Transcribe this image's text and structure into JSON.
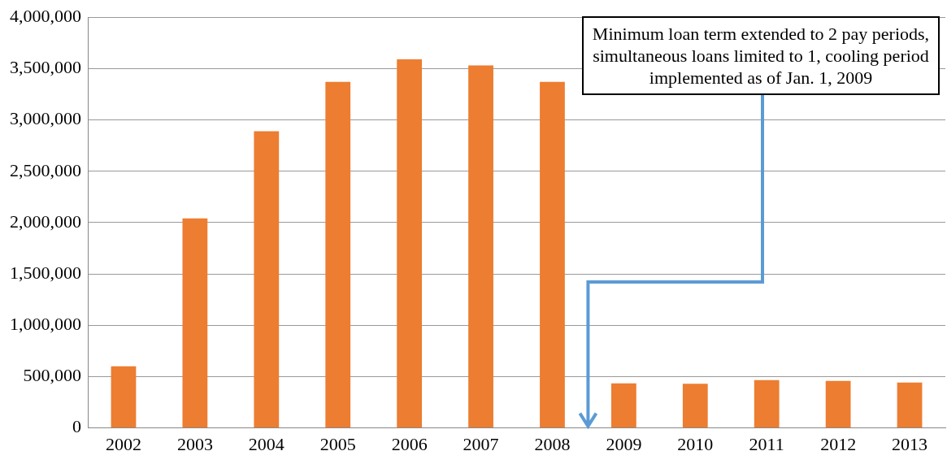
{
  "chart_data": {
    "type": "bar",
    "categories": [
      "2002",
      "2003",
      "2004",
      "2005",
      "2006",
      "2007",
      "2008",
      "2009",
      "2010",
      "2011",
      "2012",
      "2013"
    ],
    "values": [
      600000,
      2040000,
      2890000,
      3370000,
      3590000,
      3530000,
      3370000,
      434000,
      431000,
      466000,
      458000,
      442000
    ],
    "color": "#ed7d31",
    "ylim": [
      0,
      4000000
    ],
    "yticks": [
      0,
      {
        "value": 500000,
        "label": "500,000"
      },
      {
        "value": 1000000,
        "label": "1,000,000"
      },
      {
        "value": 1500000,
        "label": "1,500,000"
      },
      {
        "value": 2000000,
        "label": "2,000,000"
      },
      {
        "value": 2500000,
        "label": "2,500,000"
      },
      {
        "value": 3000000,
        "label": "3,000,000"
      },
      {
        "value": 3500000,
        "label": "3,500,000"
      },
      {
        "value": 4000000,
        "label": "4,000,000"
      }
    ],
    "grid": "y",
    "annotations": [
      "Minimum loan term extended to 2 pay periods, simultaneous loans limited to 1, cooling period implemented as of Jan. 1, 2009"
    ]
  }
}
